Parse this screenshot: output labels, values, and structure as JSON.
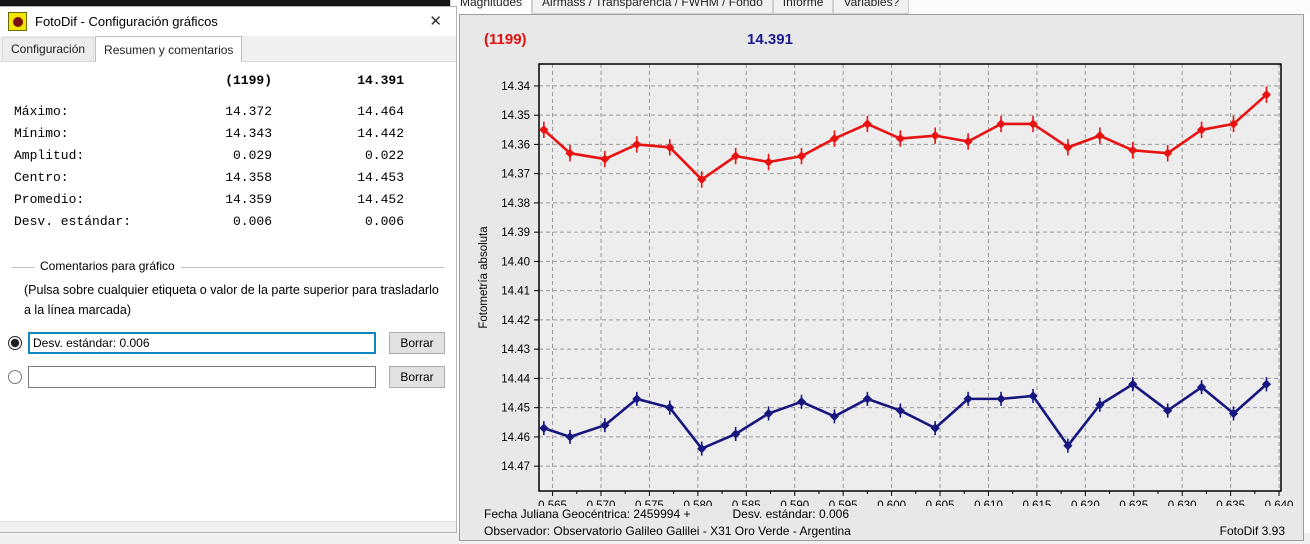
{
  "dialog": {
    "title": "FotoDif - Configuración gráficos",
    "close_label": "✕",
    "app_icon": "fotodif-logo",
    "tabs": [
      {
        "label": "Configuración",
        "active": false
      },
      {
        "label": "Resumen y comentarios",
        "active": true
      }
    ],
    "summary": {
      "col1_header": "(1199)",
      "col2_header": "14.391",
      "rows": [
        {
          "label": "Máximo:",
          "col1": "14.372",
          "col2": "14.464"
        },
        {
          "label": "Mínimo:",
          "col1": "14.343",
          "col2": "14.442"
        },
        {
          "label": "Amplitud:",
          "col1": "0.029",
          "col2": "0.022"
        },
        {
          "label": "Centro:",
          "col1": "14.358",
          "col2": "14.453"
        },
        {
          "label": "Promedio:",
          "col1": "14.359",
          "col2": "14.452"
        },
        {
          "label": "Desv. estándar:",
          "col1": "0.006",
          "col2": "0.006"
        }
      ]
    },
    "comments_group": {
      "title": "Comentarios para gráfico",
      "hint_line1": "(Pulsa sobre cualquier etiqueta o valor de la parte superior para trasladarlo",
      "hint_line2": "a la línea marcada)",
      "rows": [
        {
          "selected": true,
          "value": "Desv. estándar: 0.006",
          "button": "Borrar"
        },
        {
          "selected": false,
          "value": "",
          "button": "Borrar"
        }
      ]
    }
  },
  "main_tabs": [
    {
      "label": "Magnitudes",
      "active": true
    },
    {
      "label": "Airmass / Transparencia / FWHM / Fondo",
      "active": false
    },
    {
      "label": "Informe",
      "active": false
    },
    {
      "label": "Variables?",
      "active": false
    }
  ],
  "chart_header": {
    "object_label": "(1199)",
    "comparison_label": "14.391"
  },
  "footer": {
    "line1_left": "Fecha Juliana Geocéntrica: 2459994 +",
    "line1_comment": "Desv. estándar: 0.006",
    "line2_left": "Observador: Observatorio Galileo Galilei - X31 Oro Verde - Argentina",
    "version": "FotoDif 3.93"
  },
  "colors": {
    "object_series": "#e81212",
    "comparison_series": "#16167e",
    "header_red": "#e01010",
    "header_navy": "#1a1a90",
    "grid": "#999999",
    "plot_bg": "#ededed",
    "panel_bg": "#e8e8e8",
    "focus_border": "#0f87c0"
  },
  "chart_data": {
    "type": "line",
    "title": "",
    "xlabel": "Fecha Juliana Geocéntrica: 2459994 +",
    "ylabel": "Fotometría absoluta",
    "grid": true,
    "legend": "none",
    "y_inverted": true,
    "xlim": [
      0.5636,
      0.6402
    ],
    "ylim": [
      14.3325,
      14.4785
    ],
    "x_ticks": [
      0.565,
      0.57,
      0.575,
      0.58,
      0.585,
      0.59,
      0.595,
      0.6,
      0.605,
      0.61,
      0.615,
      0.62,
      0.625,
      0.63,
      0.635,
      0.64
    ],
    "x_tick_labels": [
      "0.565",
      "0.570",
      "0.575",
      "0.580",
      "0.585",
      "0.590",
      "0.595",
      "0.600",
      "0.605",
      "0.610",
      "0.615",
      "0.620",
      "0.625",
      "0.630",
      "0.635",
      "0.640"
    ],
    "y_ticks": [
      14.34,
      14.35,
      14.36,
      14.37,
      14.38,
      14.39,
      14.4,
      14.41,
      14.42,
      14.43,
      14.44,
      14.45,
      14.46,
      14.47
    ],
    "y_tick_labels": [
      "14.34",
      "14.35",
      "14.36",
      "14.37",
      "14.38",
      "14.39",
      "14.40",
      "14.41",
      "14.42",
      "14.43",
      "14.44",
      "14.45",
      "14.46",
      "14.47"
    ],
    "x": [
      0.5641,
      0.5668,
      0.5704,
      0.5737,
      0.5771,
      0.5804,
      0.5839,
      0.5873,
      0.5907,
      0.5941,
      0.5975,
      0.6009,
      0.6045,
      0.6079,
      0.6113,
      0.6146,
      0.6182,
      0.6215,
      0.6249,
      0.6285,
      0.632,
      0.6353,
      0.6387
    ],
    "series": [
      {
        "name": "(1199)",
        "color": "#e81212",
        "error_bar": 0.0028,
        "values": [
          14.355,
          14.363,
          14.365,
          14.36,
          14.361,
          14.372,
          14.364,
          14.366,
          14.364,
          14.358,
          14.353,
          14.358,
          14.357,
          14.359,
          14.353,
          14.353,
          14.361,
          14.357,
          14.362,
          14.363,
          14.355,
          14.353,
          14.343
        ]
      },
      {
        "name": "14.391",
        "color": "#16167e",
        "error_bar": 0.0024,
        "values": [
          14.457,
          14.46,
          14.456,
          14.447,
          14.45,
          14.464,
          14.459,
          14.452,
          14.448,
          14.453,
          14.447,
          14.451,
          14.457,
          14.447,
          14.447,
          14.446,
          14.463,
          14.449,
          14.442,
          14.451,
          14.443,
          14.452,
          14.442
        ]
      }
    ]
  }
}
